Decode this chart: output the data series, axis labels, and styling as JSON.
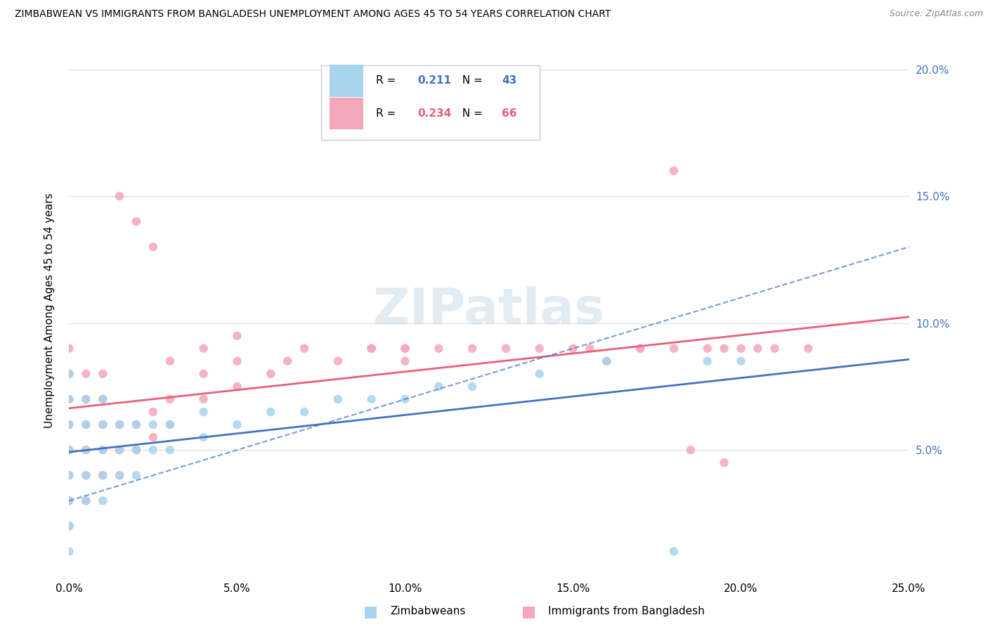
{
  "title": "ZIMBABWEAN VS IMMIGRANTS FROM BANGLADESH UNEMPLOYMENT AMONG AGES 45 TO 54 YEARS CORRELATION CHART",
  "source": "Source: ZipAtlas.com",
  "ylabel": "Unemployment Among Ages 45 to 54 years",
  "xlim": [
    0.0,
    0.25
  ],
  "ylim": [
    0.0,
    0.21
  ],
  "x_tick_vals": [
    0.0,
    0.05,
    0.1,
    0.15,
    0.2,
    0.25
  ],
  "x_tick_labels": [
    "0.0%",
    "5.0%",
    "10.0%",
    "15.0%",
    "20.0%",
    "25.0%"
  ],
  "y_tick_vals": [
    0.0,
    0.05,
    0.1,
    0.15,
    0.2
  ],
  "y_tick_labels_right": [
    "5.0%",
    "10.0%",
    "15.0%",
    "20.0%"
  ],
  "zimbabwe_color": "#A8D4EE",
  "bangladesh_color": "#F4A7B9",
  "zimbabwe_line_color": "#4472C4",
  "bangladesh_line_color": "#E8607A",
  "R_zimbabwe": 0.211,
  "N_zimbabwe": 43,
  "R_bangladesh": 0.234,
  "N_bangladesh": 66,
  "watermark_text": "ZIPatlas",
  "zim_x": [
    0.0,
    0.0,
    0.0,
    0.0,
    0.0,
    0.0,
    0.0,
    0.0,
    0.005,
    0.005,
    0.005,
    0.005,
    0.005,
    0.01,
    0.01,
    0.01,
    0.01,
    0.01,
    0.015,
    0.015,
    0.015,
    0.02,
    0.02,
    0.02,
    0.025,
    0.025,
    0.03,
    0.03,
    0.04,
    0.04,
    0.05,
    0.06,
    0.07,
    0.08,
    0.09,
    0.1,
    0.11,
    0.12,
    0.14,
    0.16,
    0.18,
    0.19,
    0.2
  ],
  "zim_y": [
    0.03,
    0.04,
    0.05,
    0.06,
    0.07,
    0.08,
    0.02,
    0.01,
    0.03,
    0.04,
    0.05,
    0.06,
    0.07,
    0.03,
    0.04,
    0.05,
    0.06,
    0.07,
    0.04,
    0.05,
    0.06,
    0.04,
    0.05,
    0.06,
    0.05,
    0.06,
    0.05,
    0.06,
    0.055,
    0.065,
    0.06,
    0.065,
    0.065,
    0.07,
    0.07,
    0.07,
    0.075,
    0.075,
    0.08,
    0.085,
    0.01,
    0.085,
    0.085
  ],
  "ban_x": [
    0.0,
    0.0,
    0.0,
    0.0,
    0.0,
    0.0,
    0.0,
    0.0,
    0.005,
    0.005,
    0.005,
    0.005,
    0.005,
    0.005,
    0.01,
    0.01,
    0.01,
    0.01,
    0.01,
    0.015,
    0.015,
    0.015,
    0.015,
    0.02,
    0.02,
    0.02,
    0.025,
    0.025,
    0.025,
    0.03,
    0.03,
    0.03,
    0.04,
    0.04,
    0.04,
    0.05,
    0.05,
    0.05,
    0.06,
    0.065,
    0.07,
    0.08,
    0.09,
    0.1,
    0.1,
    0.11,
    0.12,
    0.13,
    0.14,
    0.15,
    0.16,
    0.17,
    0.18,
    0.18,
    0.19,
    0.2,
    0.21,
    0.22,
    0.185,
    0.195,
    0.09,
    0.155,
    0.1,
    0.17,
    0.195,
    0.205
  ],
  "ban_y": [
    0.03,
    0.04,
    0.05,
    0.06,
    0.07,
    0.08,
    0.09,
    0.02,
    0.03,
    0.04,
    0.05,
    0.06,
    0.07,
    0.08,
    0.04,
    0.05,
    0.06,
    0.07,
    0.08,
    0.04,
    0.05,
    0.06,
    0.15,
    0.05,
    0.06,
    0.14,
    0.055,
    0.065,
    0.13,
    0.06,
    0.07,
    0.085,
    0.07,
    0.08,
    0.09,
    0.075,
    0.085,
    0.095,
    0.08,
    0.085,
    0.09,
    0.085,
    0.09,
    0.085,
    0.09,
    0.09,
    0.09,
    0.09,
    0.09,
    0.09,
    0.085,
    0.09,
    0.09,
    0.16,
    0.09,
    0.09,
    0.09,
    0.09,
    0.05,
    0.045,
    0.09,
    0.09,
    0.09,
    0.09,
    0.09,
    0.09
  ]
}
